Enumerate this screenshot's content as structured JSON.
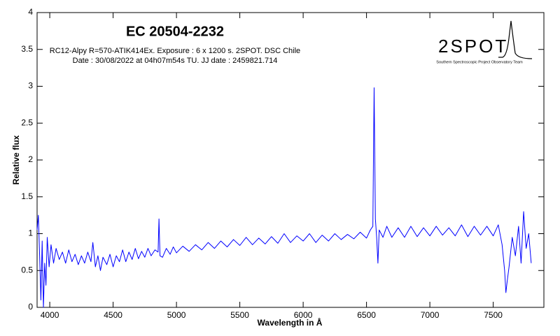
{
  "chart_data": {
    "type": "line",
    "title": "EC 20504-2232",
    "subtitle": [
      "RC12-Alpy R=570-ATIK414Ex. Exposure : 6 x 1200 s. 2SPOT. DSC Chile",
      "Date : 30/08/2022 at 04h07m54s TU. JJ date : 2459821.714"
    ],
    "logo": {
      "text": "2SPOT",
      "caption": "Southern Spectroscopic Project Observatory Team"
    },
    "xlabel": "Wavelength in Å",
    "ylabel": "Relative flux",
    "color": "#0000ff",
    "xlim": [
      3900,
      7900
    ],
    "ylim": [
      0,
      4
    ],
    "xticks": [
      4000,
      4500,
      5000,
      5500,
      6000,
      6500,
      7000,
      7500
    ],
    "yticks": [
      0,
      0.5,
      1,
      1.5,
      2,
      2.5,
      3,
      3.5,
      4
    ],
    "x": [
      3900,
      3910,
      3920,
      3930,
      3940,
      3950,
      3960,
      3970,
      3980,
      3995,
      4010,
      4030,
      4050,
      4075,
      4100,
      4125,
      4150,
      4175,
      4200,
      4225,
      4250,
      4275,
      4300,
      4325,
      4340,
      4360,
      4380,
      4400,
      4420,
      4450,
      4475,
      4500,
      4525,
      4550,
      4575,
      4600,
      4625,
      4650,
      4675,
      4700,
      4725,
      4750,
      4775,
      4800,
      4830,
      4855,
      4862,
      4870,
      4890,
      4920,
      4950,
      4975,
      5000,
      5050,
      5100,
      5150,
      5200,
      5250,
      5300,
      5350,
      5400,
      5450,
      5500,
      5550,
      5600,
      5650,
      5700,
      5750,
      5800,
      5850,
      5900,
      5950,
      6000,
      6050,
      6100,
      6150,
      6200,
      6250,
      6300,
      6350,
      6400,
      6450,
      6500,
      6530,
      6550,
      6560,
      6570,
      6580,
      6590,
      6600,
      6630,
      6660,
      6700,
      6750,
      6800,
      6850,
      6900,
      6950,
      7000,
      7050,
      7100,
      7150,
      7200,
      7250,
      7300,
      7350,
      7400,
      7450,
      7500,
      7540,
      7570,
      7590,
      7600,
      7610,
      7625,
      7650,
      7675,
      7700,
      7720,
      7740,
      7760,
      7780,
      7800
    ],
    "values": [
      1.05,
      1.25,
      0.7,
      0.1,
      0.9,
      0.0,
      0.6,
      0.3,
      0.95,
      0.55,
      0.85,
      0.6,
      0.8,
      0.65,
      0.75,
      0.6,
      0.78,
      0.62,
      0.72,
      0.58,
      0.7,
      0.6,
      0.75,
      0.62,
      0.88,
      0.55,
      0.7,
      0.5,
      0.68,
      0.58,
      0.72,
      0.55,
      0.7,
      0.62,
      0.78,
      0.62,
      0.75,
      0.65,
      0.8,
      0.66,
      0.76,
      0.68,
      0.8,
      0.7,
      0.78,
      0.75,
      1.2,
      0.7,
      0.68,
      0.8,
      0.72,
      0.82,
      0.74,
      0.83,
      0.76,
      0.85,
      0.78,
      0.88,
      0.8,
      0.9,
      0.82,
      0.92,
      0.84,
      0.95,
      0.85,
      0.94,
      0.86,
      0.96,
      0.87,
      1.0,
      0.88,
      0.97,
      0.9,
      1.0,
      0.88,
      0.98,
      0.9,
      1.0,
      0.92,
      0.99,
      0.93,
      1.02,
      0.94,
      1.05,
      1.1,
      2.98,
      1.2,
      0.95,
      0.6,
      1.05,
      0.95,
      1.1,
      0.95,
      1.08,
      0.95,
      1.1,
      0.96,
      1.08,
      0.97,
      1.1,
      0.98,
      1.08,
      0.97,
      1.12,
      0.96,
      1.1,
      0.98,
      1.1,
      0.97,
      1.12,
      0.85,
      0.5,
      0.2,
      0.35,
      0.55,
      0.95,
      0.7,
      1.1,
      0.6,
      1.3,
      0.8,
      1.0,
      0.6
    ]
  }
}
